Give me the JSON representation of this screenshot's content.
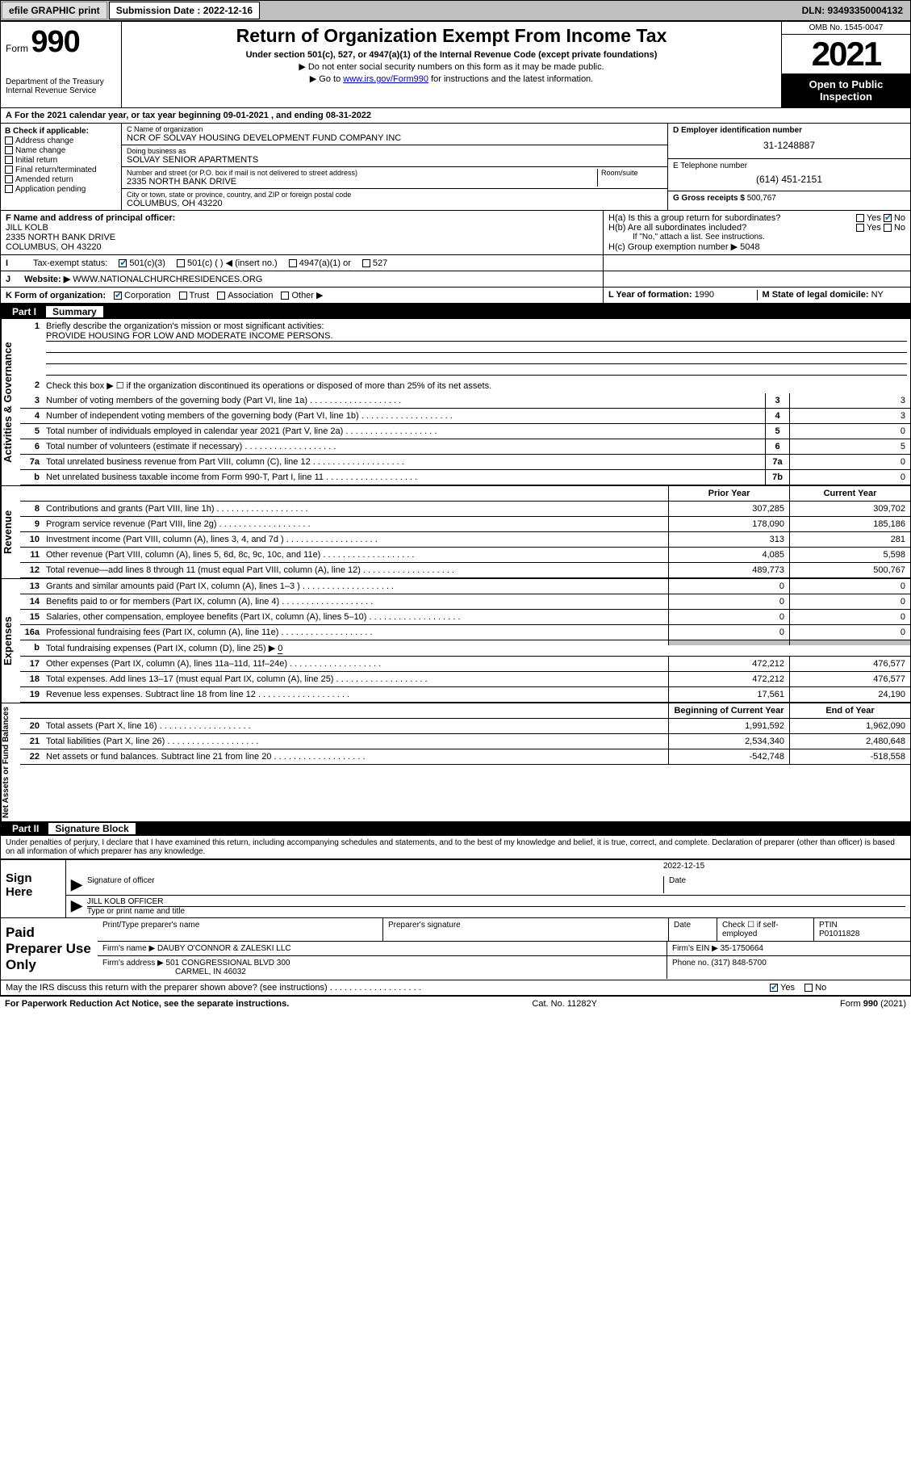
{
  "topbar": {
    "efile": "efile GRAPHIC print",
    "subdate_label": "Submission Date : 2022-12-16",
    "dln": "DLN: 93493350004132"
  },
  "header": {
    "form_label": "Form",
    "form_no": "990",
    "dept": "Department of the Treasury",
    "irs": "Internal Revenue Service",
    "title": "Return of Organization Exempt From Income Tax",
    "sub": "Under section 501(c), 527, or 4947(a)(1) of the Internal Revenue Code (except private foundations)",
    "note1": "▶ Do not enter social security numbers on this form as it may be made public.",
    "note2_pre": "▶ Go to ",
    "note2_link": "www.irs.gov/Form990",
    "note2_post": " for instructions and the latest information.",
    "omb": "OMB No. 1545-0047",
    "year": "2021",
    "open": "Open to Public Inspection"
  },
  "A": "For the 2021 calendar year, or tax year beginning 09-01-2021  , and ending 08-31-2022",
  "B": {
    "label": "B Check if applicable:",
    "items": [
      "Address change",
      "Name change",
      "Initial return",
      "Final return/terminated",
      "Amended return",
      "Application pending"
    ]
  },
  "C": {
    "name_lbl": "C Name of organization",
    "name": "NCR OF SOLVAY HOUSING DEVELOPMENT FUND COMPANY INC",
    "dba_lbl": "Doing business as",
    "dba": "SOLVAY SENIOR APARTMENTS",
    "addr_lbl": "Number and street (or P.O. box if mail is not delivered to street address)",
    "room_lbl": "Room/suite",
    "addr": "2335 NORTH BANK DRIVE",
    "city_lbl": "City or town, state or province, country, and ZIP or foreign postal code",
    "city": "COLUMBUS, OH  43220"
  },
  "D": {
    "lbl": "D Employer identification number",
    "val": "31-1248887"
  },
  "E": {
    "lbl": "E Telephone number",
    "val": "(614) 451-2151"
  },
  "G": {
    "lbl": "G Gross receipts $",
    "val": "500,767"
  },
  "F": {
    "lbl": "F Name and address of principal officer:",
    "name": "JILL KOLB",
    "addr1": "2335 NORTH BANK DRIVE",
    "addr2": "COLUMBUS, OH  43220"
  },
  "H": {
    "a": "H(a)  Is this a group return for subordinates?",
    "a_yes": "Yes",
    "a_no": "No",
    "b": "H(b)  Are all subordinates included?",
    "b_note": "If \"No,\" attach a list. See instructions.",
    "c": "H(c)  Group exemption number ▶",
    "c_val": "5048"
  },
  "I": {
    "lbl": "Tax-exempt status:",
    "opt1": "501(c)(3)",
    "opt2": "501(c) (   ) ◀ (insert no.)",
    "opt3": "4947(a)(1) or",
    "opt4": "527"
  },
  "J": {
    "lbl": "Website: ▶",
    "val": "WWW.NATIONALCHURCHRESIDENCES.ORG"
  },
  "K": {
    "lbl": "K Form of organization:",
    "opts": [
      "Corporation",
      "Trust",
      "Association",
      "Other ▶"
    ]
  },
  "L": {
    "lbl": "L Year of formation:",
    "val": "1990"
  },
  "M": {
    "lbl": "M State of legal domicile:",
    "val": "NY"
  },
  "parts": {
    "p1": {
      "num": "Part I",
      "title": "Summary"
    },
    "p2": {
      "num": "Part II",
      "title": "Signature Block"
    }
  },
  "summary": {
    "govern_label": "Activities & Governance",
    "rev_label": "Revenue",
    "exp_label": "Expenses",
    "net_label": "Net Assets or Fund Balances",
    "l1": "Briefly describe the organization's mission or most significant activities:",
    "l1v": "PROVIDE HOUSING FOR LOW AND MODERATE INCOME PERSONS.",
    "l2": "Check this box ▶ ☐  if the organization discontinued its operations or disposed of more than 25% of its net assets.",
    "lines_gov": [
      {
        "n": "3",
        "t": "Number of voting members of the governing body (Part VI, line 1a)",
        "box": "3",
        "v": "3"
      },
      {
        "n": "4",
        "t": "Number of independent voting members of the governing body (Part VI, line 1b)",
        "box": "4",
        "v": "3"
      },
      {
        "n": "5",
        "t": "Total number of individuals employed in calendar year 2021 (Part V, line 2a)",
        "box": "5",
        "v": "0"
      },
      {
        "n": "6",
        "t": "Total number of volunteers (estimate if necessary)",
        "box": "6",
        "v": "5"
      },
      {
        "n": "7a",
        "t": "Total unrelated business revenue from Part VIII, column (C), line 12",
        "box": "7a",
        "v": "0"
      },
      {
        "n": "b",
        "t": "Net unrelated business taxable income from Form 990-T, Part I, line 11",
        "box": "7b",
        "v": "0"
      }
    ],
    "col_prior": "Prior Year",
    "col_curr": "Current Year",
    "lines_rev": [
      {
        "n": "8",
        "t": "Contributions and grants (Part VIII, line 1h)",
        "p": "307,285",
        "c": "309,702"
      },
      {
        "n": "9",
        "t": "Program service revenue (Part VIII, line 2g)",
        "p": "178,090",
        "c": "185,186"
      },
      {
        "n": "10",
        "t": "Investment income (Part VIII, column (A), lines 3, 4, and 7d )",
        "p": "313",
        "c": "281"
      },
      {
        "n": "11",
        "t": "Other revenue (Part VIII, column (A), lines 5, 6d, 8c, 9c, 10c, and 11e)",
        "p": "4,085",
        "c": "5,598"
      },
      {
        "n": "12",
        "t": "Total revenue—add lines 8 through 11 (must equal Part VIII, column (A), line 12)",
        "p": "489,773",
        "c": "500,767"
      }
    ],
    "lines_exp": [
      {
        "n": "13",
        "t": "Grants and similar amounts paid (Part IX, column (A), lines 1–3 )",
        "p": "0",
        "c": "0"
      },
      {
        "n": "14",
        "t": "Benefits paid to or for members (Part IX, column (A), line 4)",
        "p": "0",
        "c": "0"
      },
      {
        "n": "15",
        "t": "Salaries, other compensation, employee benefits (Part IX, column (A), lines 5–10)",
        "p": "0",
        "c": "0"
      },
      {
        "n": "16a",
        "t": "Professional fundraising fees (Part IX, column (A), line 11e)",
        "p": "0",
        "c": "0"
      }
    ],
    "l16b_pre": "Total fundraising expenses (Part IX, column (D), line 25) ▶",
    "l16b_val": "0",
    "lines_exp2": [
      {
        "n": "17",
        "t": "Other expenses (Part IX, column (A), lines 11a–11d, 11f–24e)",
        "p": "472,212",
        "c": "476,577"
      },
      {
        "n": "18",
        "t": "Total expenses. Add lines 13–17 (must equal Part IX, column (A), line 25)",
        "p": "472,212",
        "c": "476,577"
      },
      {
        "n": "19",
        "t": "Revenue less expenses. Subtract line 18 from line 12",
        "p": "17,561",
        "c": "24,190"
      }
    ],
    "col_begin": "Beginning of Current Year",
    "col_end": "End of Year",
    "lines_net": [
      {
        "n": "20",
        "t": "Total assets (Part X, line 16)",
        "p": "1,991,592",
        "c": "1,962,090"
      },
      {
        "n": "21",
        "t": "Total liabilities (Part X, line 26)",
        "p": "2,534,340",
        "c": "2,480,648"
      },
      {
        "n": "22",
        "t": "Net assets or fund balances. Subtract line 21 from line 20",
        "p": "-542,748",
        "c": "-518,558"
      }
    ]
  },
  "sigblock": {
    "decl": "Under penalties of perjury, I declare that I have examined this return, including accompanying schedules and statements, and to the best of my knowledge and belief, it is true, correct, and complete. Declaration of preparer (other than officer) is based on all information of which preparer has any knowledge.",
    "sign_here": "Sign Here",
    "sig_officer": "Signature of officer",
    "date": "Date",
    "date_val": "2022-12-15",
    "name_title": "JILL KOLB  OFFICER",
    "name_lbl": "Type or print name and title"
  },
  "paid": {
    "label": "Paid Preparer Use Only",
    "hdr_name": "Print/Type preparer's name",
    "hdr_sig": "Preparer's signature",
    "hdr_date": "Date",
    "hdr_check": "Check ☐ if self-employed",
    "hdr_ptin": "PTIN",
    "ptin": "P01011828",
    "firm_name_lbl": "Firm's name    ▶",
    "firm_name": "DAUBY O'CONNOR & ZALESKI LLC",
    "firm_ein_lbl": "Firm's EIN ▶",
    "firm_ein": "35-1750664",
    "firm_addr_lbl": "Firm's address ▶",
    "firm_addr1": "501 CONGRESSIONAL BLVD 300",
    "firm_addr2": "CARMEL, IN  46032",
    "phone_lbl": "Phone no.",
    "phone": "(317) 848-5700"
  },
  "bottom": {
    "q": "May the IRS discuss this return with the preparer shown above? (see instructions)",
    "yes": "Yes",
    "no": "No",
    "pra": "For Paperwork Reduction Act Notice, see the separate instructions.",
    "cat": "Cat. No. 11282Y",
    "form": "Form 990 (2021)"
  },
  "colors": {
    "topbar_bg": "#bfbfbf",
    "link": "#0000cc",
    "check": "#0062bb",
    "black": "#000000",
    "grey_cell": "#bfbfbf"
  }
}
